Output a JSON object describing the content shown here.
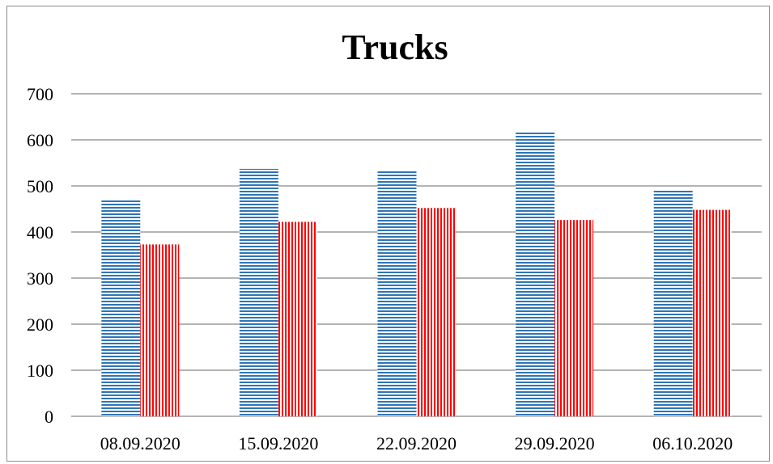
{
  "chart_data": {
    "type": "bar",
    "title": "Trucks",
    "xlabel": "",
    "ylabel": "",
    "categories": [
      "08.09.2020",
      "15.09.2020",
      "22.09.2020",
      "29.09.2020",
      "06.10.2020"
    ],
    "series": [
      {
        "values": [
          470,
          537,
          533,
          619,
          490
        ],
        "color": "#2e75b6",
        "pattern": "horizontal-stripes"
      },
      {
        "values": [
          373,
          422,
          452,
          426,
          448
        ],
        "color": "#ff0000",
        "pattern": "vertical-stripes"
      }
    ],
    "ylim": [
      0,
      700
    ],
    "yticks": [
      "0",
      "100",
      "200",
      "300",
      "400",
      "500",
      "600",
      "700"
    ],
    "grid": true,
    "legend": "none"
  }
}
